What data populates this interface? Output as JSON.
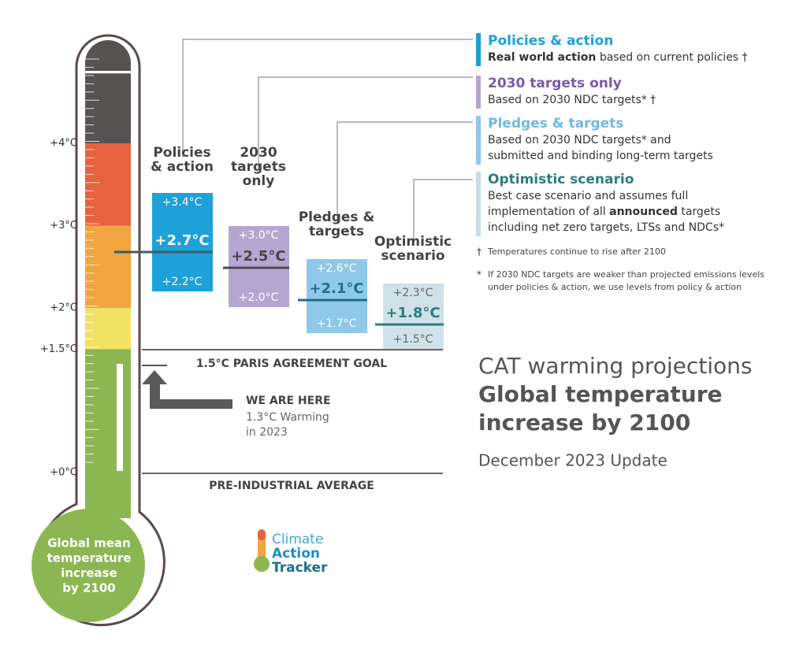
{
  "scale": {
    "ticks": [
      "+4°C",
      "+3°C",
      "+2°C",
      "+1.5°C",
      "+0°C"
    ]
  },
  "bulb_label": [
    "Global mean",
    "temperature",
    "increase",
    "by 2100"
  ],
  "scenarios": [
    {
      "title": [
        "Policies",
        "& action"
      ],
      "high": "+3.4°C",
      "mid": "+2.7°C",
      "low": "+2.2°C"
    },
    {
      "title": [
        "2030",
        "targets",
        "only"
      ],
      "high": "+3.0°C",
      "mid": "+2.5°C",
      "low": "+2.0°C"
    },
    {
      "title": [
        "Pledges &",
        "targets"
      ],
      "high": "+2.6°C",
      "mid": "+2.1°C",
      "low": "+1.7°C"
    },
    {
      "title": [
        "Optimistic",
        "scenario"
      ],
      "high": "+2.3°C",
      "mid": "+1.8°C",
      "low": "+1.5°C"
    }
  ],
  "goal": "1.5°C PARIS AGREEMENT GOAL",
  "baseline": "PRE-INDUSTRIAL AVERAGE",
  "here": {
    "title": "WE ARE HERE",
    "lines": [
      "1.3°C Warming",
      "in 2023"
    ]
  },
  "legend": [
    {
      "name": "Policies & action",
      "lines": [
        [
          {
            "text": "Real world action",
            "bold": true
          },
          {
            "text": " based on current policies †",
            "bold": false
          }
        ]
      ]
    },
    {
      "name": "2030 targets only",
      "lines": [
        [
          {
            "text": "Based on 2030 NDC targets* †",
            "bold": false
          }
        ]
      ]
    },
    {
      "name": "Pledges & targets",
      "lines": [
        [
          {
            "text": "Based on 2030 NDC targets* and",
            "bold": false
          }
        ],
        [
          {
            "text": "submitted and binding long-term targets",
            "bold": false
          }
        ]
      ]
    },
    {
      "name": "Optimistic scenario",
      "lines": [
        [
          {
            "text": "Best case scenario and assumes full",
            "bold": false
          }
        ],
        [
          {
            "text": "implementation of all ",
            "bold": false
          },
          {
            "text": "announced",
            "bold": true
          },
          {
            "text": " targets",
            "bold": false
          }
        ],
        [
          {
            "text": "including net zero targets, LTSs and NDCs*",
            "bold": false
          }
        ]
      ]
    }
  ],
  "footnotes": [
    {
      "symbol": "†",
      "lines": [
        "Temperatures continue to rise after 2100"
      ]
    },
    {
      "symbol": "*",
      "lines": [
        "If 2030 NDC targets are weaker than projected emissions levels",
        "under policies & action, we use levels from policy & action"
      ]
    }
  ],
  "heading": {
    "light": "CAT warming projections",
    "bold": [
      "Global temperature",
      "increase by 2100"
    ],
    "update": "December 2023 Update"
  },
  "logo": [
    "Climate",
    "Action",
    "Tracker"
  ]
}
